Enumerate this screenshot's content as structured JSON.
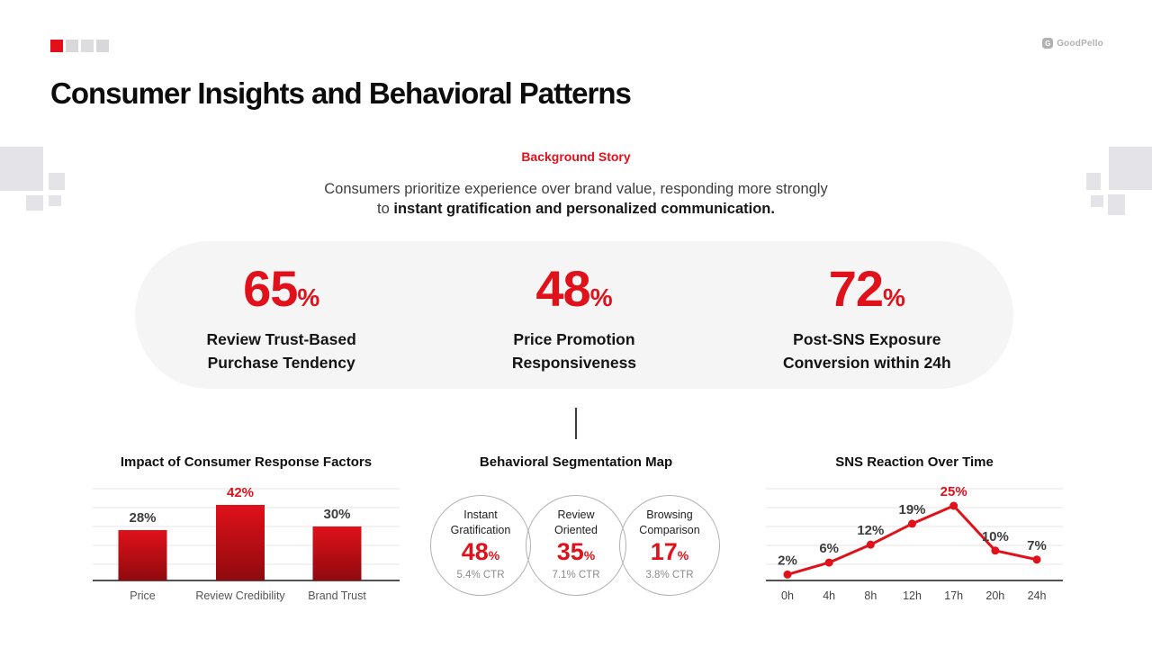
{
  "header": {
    "title": "Consumer Insights and Behavioral Patterns",
    "accent_squares": [
      "#e0111a",
      "#d8d8da",
      "#dddddf",
      "#d8d8da"
    ],
    "logo": {
      "letter": "G",
      "text": "GoodPello"
    }
  },
  "intro": {
    "eyebrow": "Background Story",
    "line1": "Consumers prioritize experience over brand value, responding more strongly",
    "line2_regular": "to ",
    "line2_bold": "instant gratification and personalized communication."
  },
  "stats": [
    {
      "value": "65",
      "unit": "%",
      "label_line1": "Review Trust-Based",
      "label_line2": "Purchase Tendency"
    },
    {
      "value": "48",
      "unit": "%",
      "label_line1": "Price Promotion",
      "label_line2": "Responsiveness"
    },
    {
      "value": "72",
      "unit": "%",
      "label_line1": "Post-SNS Exposure",
      "label_line2": "Conversion within 24h"
    }
  ],
  "colors": {
    "accent": "#e0111a",
    "bar_gradient_top": "#e0111a",
    "bar_gradient_bottom": "#8f0a0e",
    "pill_background": "#f5f5f6",
    "decorative_gray": "#e4e4e8",
    "gridline": "#e6e6e6",
    "axis": "#1a1a1a",
    "label_gray": "#3d3d3d"
  },
  "chart_data": [
    {
      "type": "bar",
      "title": "Impact of Consumer Response Factors",
      "categories": [
        "Price",
        "Review Credibility",
        "Brand Trust"
      ],
      "values": [
        28,
        42,
        30
      ],
      "unit": "%",
      "highlight_index": 1,
      "xlabel": "",
      "ylabel": "",
      "ylim": [
        0,
        50
      ],
      "grid": true,
      "legend": false
    },
    {
      "type": "pie",
      "variant": "overlapping-circles",
      "title": "Behavioral Segmentation Map",
      "unit": "%",
      "segments": [
        {
          "label": "Instant Gratification",
          "value": 48,
          "ctr": "5.4% CTR"
        },
        {
          "label": "Review Oriented",
          "value": 35,
          "ctr": "7.1% CTR"
        },
        {
          "label": "Browsing Comparison",
          "value": 17,
          "ctr": "3.8% CTR"
        }
      ]
    },
    {
      "type": "line",
      "title": "SNS Reaction Over Time",
      "x": [
        "0h",
        "4h",
        "8h",
        "12h",
        "17h",
        "20h",
        "24h"
      ],
      "values": [
        2,
        6,
        12,
        19,
        25,
        10,
        7
      ],
      "unit": "%",
      "highlight_index": 4,
      "xlabel": "",
      "ylabel": "",
      "ylim": [
        0,
        30
      ],
      "grid": true,
      "legend": false
    }
  ]
}
